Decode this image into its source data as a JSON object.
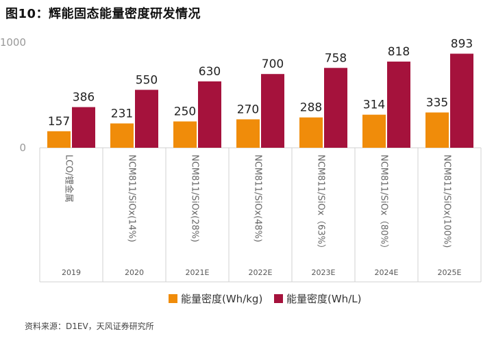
{
  "title": "图10：辉能固态能量密度研发情况",
  "source": "资料来源：D1EV，天风证券研究所",
  "colors": {
    "series1": "#F08C0A",
    "series2": "#A5123C",
    "grid": "#D0D0D0"
  },
  "chart_data": {
    "type": "bar",
    "title": "图10：辉能固态能量密度研发情况",
    "ylim": [
      0,
      1000
    ],
    "yticks": [
      0,
      1000
    ],
    "grid": false,
    "legend_position": "bottom",
    "categories": [
      "LCO/锂金属",
      "NCM811/SiOx(14%)",
      "NCM811/SiOx(28%)",
      "NCM811/SiOx(48%)",
      "NCM811/SiOx（63%）",
      "NCM811/SiOx（80%）",
      "NCM811/SiOx(100%)"
    ],
    "years": [
      "2019",
      "2020",
      "2021E",
      "2022E",
      "2023E",
      "2024E",
      "2025E"
    ],
    "series": [
      {
        "name": "能量密度(Wh/kg)",
        "values": [
          157,
          231,
          250,
          270,
          288,
          314,
          335
        ]
      },
      {
        "name": "能量密度(Wh/L)",
        "values": [
          386,
          550,
          630,
          700,
          758,
          818,
          893
        ]
      }
    ]
  }
}
